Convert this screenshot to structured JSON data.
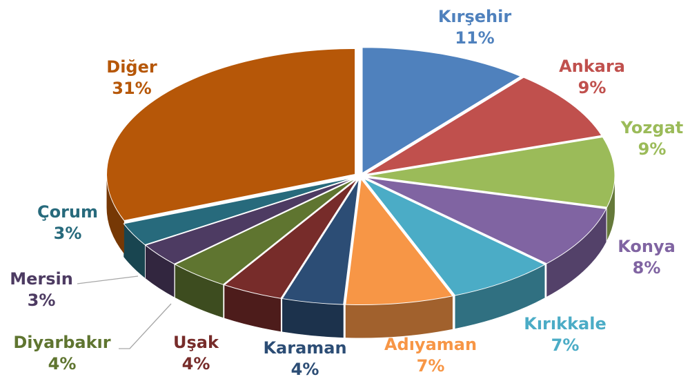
{
  "chart_data": {
    "type": "pie",
    "categories": [
      "Kırşehir",
      "Ankara",
      "Yozgat",
      "Konya",
      "Kırıkkale",
      "Adıyaman",
      "Karaman",
      "Uşak",
      "Diyarbakır",
      "Mersin",
      "Çorum",
      "Diğer"
    ],
    "values": [
      11,
      9,
      9,
      8,
      7,
      7,
      4,
      4,
      4,
      3,
      3,
      31
    ],
    "value_labels": [
      "11%",
      "9%",
      "9%",
      "8%",
      "7%",
      "7%",
      "4%",
      "4%",
      "4%",
      "3%",
      "3%",
      "31%"
    ],
    "colors": [
      "#4f81bd",
      "#c0504d",
      "#9bbb59",
      "#8064a2",
      "#4bacc6",
      "#f79646",
      "#2c4d75",
      "#772c2a",
      "#5f7530",
      "#4d3b62",
      "#276a7c",
      "#b65708"
    ]
  }
}
